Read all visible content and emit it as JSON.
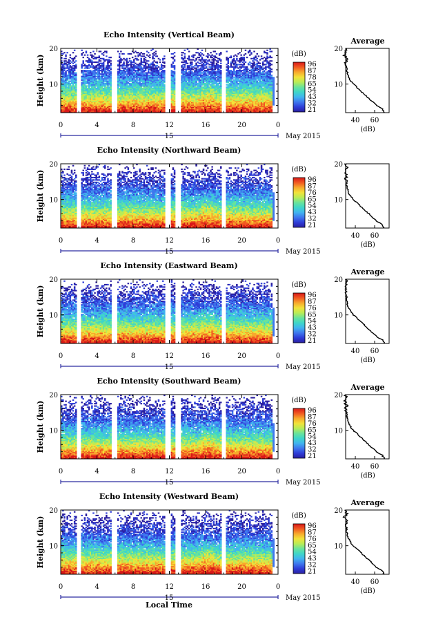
{
  "figure": {
    "xlabel": "Local Time",
    "date_label": "May 2015",
    "day_label": "15",
    "avg_title": "Average",
    "avg_xlabel": "(dB)",
    "ylabel": "Height (km)",
    "cbar_label": "(dB)"
  },
  "chart_data": [
    {
      "type": "heatmap",
      "title": "Echo Intensity (Vertical Beam)",
      "xlabel": "Local Time",
      "ylabel": "Height (km)",
      "x_ticks": [
        "0",
        "4",
        "8",
        "12",
        "16",
        "20",
        "0"
      ],
      "y_ticks": [
        "20",
        "10"
      ],
      "xlim": [
        0,
        24
      ],
      "ylim": [
        2,
        20
      ],
      "colorbar": {
        "label": "(dB)",
        "ticks": [
          "96",
          "87",
          "78",
          "65",
          "54",
          "43",
          "32",
          "21"
        ]
      },
      "average": {
        "title": "Average",
        "xlabel": "(dB)",
        "x_ticks": [
          "40",
          "60"
        ],
        "y_ticks": [
          "20",
          "10"
        ]
      }
    },
    {
      "type": "heatmap",
      "title": "Echo Intensity (Northward Beam)",
      "xlabel": "Local Time",
      "ylabel": "Height (km)",
      "x_ticks": [
        "0",
        "4",
        "8",
        "12",
        "16",
        "20",
        "0"
      ],
      "y_ticks": [
        "20",
        "10"
      ],
      "xlim": [
        0,
        24
      ],
      "ylim": [
        2,
        20
      ],
      "colorbar": {
        "label": "(dB)",
        "ticks": [
          "96",
          "87",
          "76",
          "65",
          "54",
          "43",
          "32",
          "21"
        ]
      },
      "average": {
        "title": "",
        "xlabel": "(dB)",
        "x_ticks": [
          "40",
          "60"
        ],
        "y_ticks": [
          "20",
          "10"
        ]
      }
    },
    {
      "type": "heatmap",
      "title": "Echo Intensity (Eastward Beam)",
      "xlabel": "Local Time",
      "ylabel": "Height (km)",
      "x_ticks": [
        "0",
        "4",
        "8",
        "12",
        "16",
        "20",
        "0"
      ],
      "y_ticks": [
        "20",
        "10"
      ],
      "xlim": [
        0,
        24
      ],
      "ylim": [
        2,
        20
      ],
      "colorbar": {
        "label": "(dB)",
        "ticks": [
          "96",
          "87",
          "76",
          "65",
          "54",
          "43",
          "32",
          "21"
        ]
      },
      "average": {
        "title": "Average",
        "xlabel": "(dB)",
        "x_ticks": [
          "40",
          "60"
        ],
        "y_ticks": [
          "20",
          "10"
        ]
      }
    },
    {
      "type": "heatmap",
      "title": "Echo Intensity (Southward Beam)",
      "xlabel": "Local Time",
      "ylabel": "Height (km)",
      "x_ticks": [
        "0",
        "4",
        "8",
        "12",
        "16",
        "20",
        "0"
      ],
      "y_ticks": [
        "20",
        "10"
      ],
      "xlim": [
        0,
        24
      ],
      "ylim": [
        2,
        20
      ],
      "colorbar": {
        "label": "(dB)",
        "ticks": [
          "96",
          "87",
          "76",
          "65",
          "54",
          "43",
          "32",
          "21"
        ]
      },
      "average": {
        "title": "Average",
        "xlabel": "(dB)",
        "x_ticks": [
          "40",
          "60"
        ],
        "y_ticks": [
          "20",
          "10"
        ]
      }
    },
    {
      "type": "heatmap",
      "title": "Echo Intensity (Westward Beam)",
      "xlabel": "Local Time",
      "ylabel": "Height (km)",
      "x_ticks": [
        "0",
        "4",
        "8",
        "12",
        "16",
        "20",
        "0"
      ],
      "y_ticks": [
        "20",
        "10"
      ],
      "xlim": [
        0,
        24
      ],
      "ylim": [
        2,
        20
      ],
      "colorbar": {
        "label": "(dB)",
        "ticks": [
          "96",
          "87",
          "76",
          "65",
          "54",
          "43",
          "32",
          "21"
        ]
      },
      "average": {
        "title": "Average",
        "xlabel": "(dB)",
        "x_ticks": [
          "40",
          "60"
        ],
        "y_ticks": [
          "20",
          "10"
        ]
      }
    }
  ],
  "colormap": [
    "#2a1fa0",
    "#2f3ed8",
    "#3f78ee",
    "#41b4ef",
    "#3fd6c8",
    "#6ae39a",
    "#b9ec56",
    "#f2e23a",
    "#f7a92d",
    "#f15a22",
    "#d81818"
  ],
  "average_profile_db": [
    [
      2,
      70
    ],
    [
      3,
      68
    ],
    [
      4,
      62
    ],
    [
      5,
      58
    ],
    [
      6,
      54
    ],
    [
      7,
      50
    ],
    [
      8,
      46
    ],
    [
      9,
      42
    ],
    [
      10,
      38
    ],
    [
      11,
      35
    ],
    [
      12,
      33
    ],
    [
      13,
      32
    ],
    [
      14,
      31
    ],
    [
      15,
      31
    ],
    [
      16,
      30
    ],
    [
      17,
      31
    ],
    [
      18,
      29
    ],
    [
      19,
      31
    ],
    [
      20,
      30
    ]
  ]
}
